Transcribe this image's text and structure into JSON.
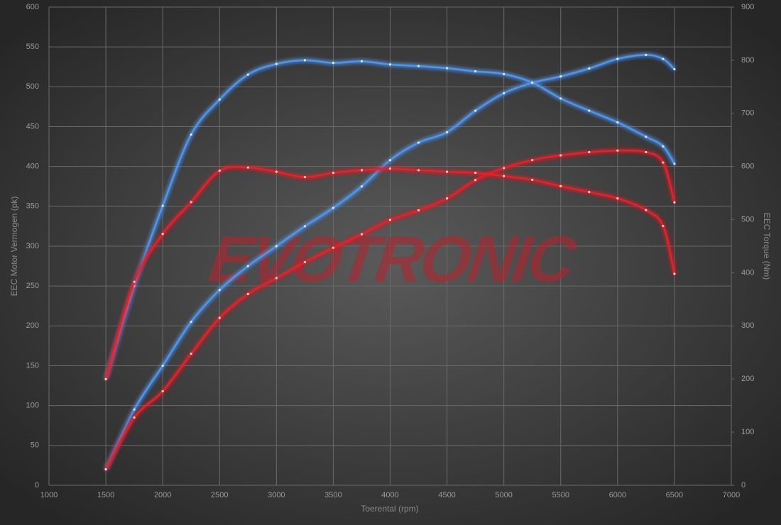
{
  "chart_data": {
    "type": "line",
    "watermark": "EVOTRONIC",
    "x_label": "Toerental (rpm)",
    "y_label": "EEC Motor Vermogen (pk)",
    "y2_label": "EEC Torque (Nm)",
    "x": [
      1500,
      1750,
      2000,
      2250,
      2500,
      2750,
      3000,
      3250,
      3500,
      3750,
      4000,
      4250,
      4500,
      4750,
      5000,
      5250,
      5500,
      5750,
      6000,
      6250,
      6400,
      6500
    ],
    "series": [
      {
        "color": "#4f95ee",
        "axis": "y",
        "values": [
          20,
          95,
          150,
          205,
          245,
          275,
          300,
          325,
          348,
          375,
          408,
          430,
          443,
          470,
          492,
          505,
          513,
          523,
          535,
          540,
          535,
          522
        ]
      },
      {
        "color": "#e3242b",
        "axis": "y",
        "values": [
          20,
          85,
          118,
          165,
          210,
          240,
          260,
          280,
          298,
          315,
          333,
          345,
          360,
          383,
          398,
          408,
          414,
          418,
          420,
          418,
          405,
          355
        ]
      },
      {
        "color": "#4f95ee",
        "axis": "y2",
        "values": [
          200,
          375,
          526,
          660,
          726,
          773,
          793,
          800,
          795,
          798,
          792,
          789,
          785,
          779,
          774,
          758,
          728,
          705,
          683,
          656,
          638,
          605
        ]
      },
      {
        "color": "#e3242b",
        "axis": "y2",
        "values": [
          200,
          383,
          473,
          533,
          592,
          598,
          590,
          580,
          588,
          593,
          596,
          593,
          590,
          588,
          582,
          575,
          563,
          552,
          540,
          518,
          488,
          398
        ]
      }
    ],
    "xlim": [
      1000,
      7000
    ],
    "xticks": [
      1000,
      1500,
      2000,
      2500,
      3000,
      3500,
      4000,
      4500,
      5000,
      5500,
      6000,
      6500,
      7000
    ],
    "ylim": [
      0,
      600
    ],
    "yticks": [
      0,
      50,
      100,
      150,
      200,
      250,
      300,
      350,
      400,
      450,
      500,
      550,
      600
    ],
    "y2lim": [
      0,
      900
    ],
    "y2ticks": [
      0,
      100,
      200,
      300,
      400,
      500,
      600,
      700,
      800,
      900
    ],
    "grid": true
  }
}
